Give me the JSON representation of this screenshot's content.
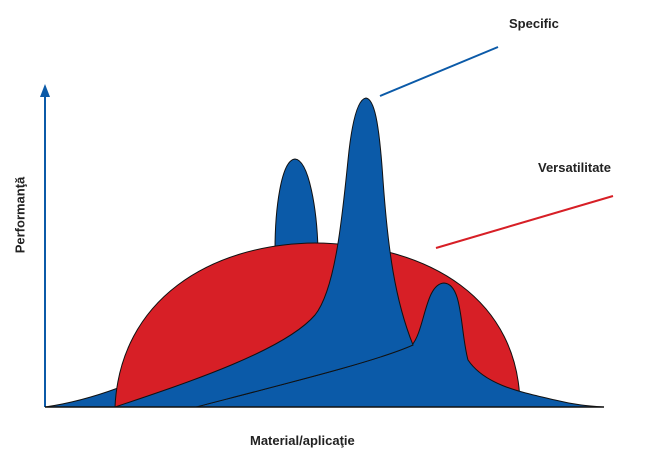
{
  "labels": {
    "specific": "Specific",
    "versatility": "Versatilitate",
    "x_axis": "Material/aplicaţie",
    "y_axis": "Performanţă"
  },
  "colors": {
    "specific_blue": "#0b5aa8",
    "versatility_red": "#d71f26",
    "axis_blue": "#0b5aa8",
    "outline": "#111111"
  }
}
